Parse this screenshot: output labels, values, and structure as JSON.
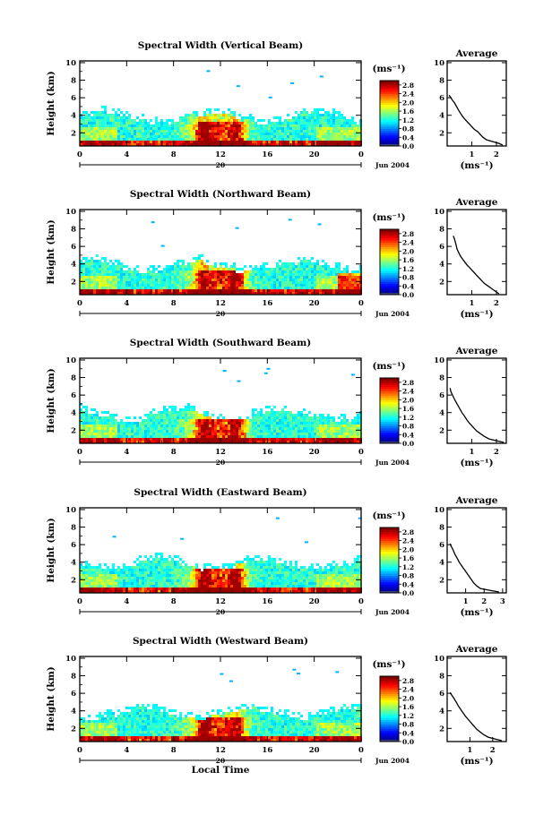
{
  "chart_data": [
    {
      "type": "heatmap",
      "title": "Spectral Width (Vertical Beam)",
      "ylabel": "Height (km)",
      "xlabel": "",
      "x_ticks": [
        "0",
        "4",
        "8",
        "12",
        "16",
        "20",
        "0"
      ],
      "y_ticks": [
        "2",
        "4",
        "6",
        "8",
        "10"
      ],
      "xlim": [
        0,
        24
      ],
      "ylim": [
        0.5,
        10.2
      ],
      "date_axis": {
        "day": "20",
        "label": "Jun 2004"
      },
      "colorbar": {
        "unit": "(ms⁻¹)",
        "ticks": [
          "0.0",
          "0.4",
          "0.8",
          "1.2",
          "1.6",
          "2.0",
          "2.4",
          "2.8"
        ],
        "range": [
          0,
          3.0
        ]
      },
      "profile": {
        "title": "Average",
        "xlabel": "(ms⁻¹)",
        "x_ticks": [
          "1",
          "2"
        ],
        "y_ticks": [
          "2",
          "4",
          "6",
          "8",
          "10"
        ],
        "xlim": [
          0,
          2.4
        ],
        "h": [
          0.6,
          0.8,
          1.0,
          1.2,
          1.5,
          1.8,
          2.1,
          2.4,
          2.7,
          3.0,
          3.3,
          3.6,
          3.9,
          4.2,
          4.5,
          4.8,
          5.1,
          5.4,
          5.7,
          6.0,
          6.3
        ],
        "w": [
          2.25,
          2.1,
          1.85,
          1.6,
          1.45,
          1.35,
          1.25,
          1.1,
          1.0,
          0.9,
          0.8,
          0.7,
          0.62,
          0.55,
          0.48,
          0.42,
          0.36,
          0.3,
          0.22,
          0.15,
          0.08
        ]
      }
    },
    {
      "type": "heatmap",
      "title": "Spectral Width (Northward Beam)",
      "ylabel": "Height (km)",
      "xlabel": "",
      "x_ticks": [
        "0",
        "4",
        "8",
        "12",
        "16",
        "20",
        "0"
      ],
      "y_ticks": [
        "2",
        "4",
        "6",
        "8",
        "10"
      ],
      "xlim": [
        0,
        24
      ],
      "ylim": [
        0.5,
        10.2
      ],
      "date_axis": {
        "day": "20",
        "label": "Jun 2004"
      },
      "colorbar": {
        "unit": "(ms⁻¹)",
        "ticks": [
          "0.0",
          "0.4",
          "0.8",
          "1.2",
          "1.6",
          "2.0",
          "2.4",
          "2.8"
        ],
        "range": [
          0,
          3.0
        ]
      },
      "profile": {
        "title": "Average",
        "xlabel": "(ms⁻¹)",
        "x_ticks": [
          "1",
          "2"
        ],
        "y_ticks": [
          "2",
          "4",
          "6",
          "8",
          "10"
        ],
        "xlim": [
          0,
          2.4
        ],
        "h": [
          0.6,
          0.9,
          1.2,
          1.5,
          1.8,
          2.1,
          2.4,
          2.7,
          3.0,
          3.3,
          3.6,
          3.9,
          4.2,
          4.5,
          4.8,
          5.1,
          5.4,
          5.7,
          6.0,
          6.3,
          6.8,
          7.2
        ],
        "w": [
          2.1,
          1.95,
          1.8,
          1.65,
          1.5,
          1.4,
          1.3,
          1.2,
          1.1,
          1.0,
          0.9,
          0.8,
          0.72,
          0.64,
          0.56,
          0.5,
          0.45,
          0.4,
          0.38,
          0.35,
          0.3,
          0.25
        ]
      }
    },
    {
      "type": "heatmap",
      "title": "Spectral Width (Southward Beam)",
      "ylabel": "Height (km)",
      "xlabel": "",
      "x_ticks": [
        "0",
        "4",
        "8",
        "12",
        "16",
        "20",
        "0"
      ],
      "y_ticks": [
        "2",
        "4",
        "6",
        "8",
        "10"
      ],
      "xlim": [
        0,
        24
      ],
      "ylim": [
        0.5,
        10.2
      ],
      "date_axis": {
        "day": "20",
        "label": "Jun 2004"
      },
      "colorbar": {
        "unit": "(ms⁻¹)",
        "ticks": [
          "0.0",
          "0.4",
          "0.8",
          "1.2",
          "1.6",
          "2.0",
          "2.4",
          "2.8"
        ],
        "range": [
          0,
          3.0
        ]
      },
      "profile": {
        "title": "Average",
        "xlabel": "(ms⁻¹)",
        "x_ticks": [
          "1",
          "2"
        ],
        "y_ticks": [
          "2",
          "4",
          "6",
          "8",
          "10"
        ],
        "xlim": [
          0,
          2.4
        ],
        "h": [
          0.6,
          0.8,
          1.0,
          1.3,
          1.6,
          1.9,
          2.2,
          2.5,
          2.8,
          3.1,
          3.4,
          3.7,
          4.0,
          4.3,
          4.6,
          4.9,
          5.2,
          5.5,
          5.8,
          6.1,
          6.4,
          6.8
        ],
        "w": [
          2.3,
          2.0,
          1.7,
          1.5,
          1.35,
          1.2,
          1.1,
          1.0,
          0.9,
          0.82,
          0.75,
          0.68,
          0.6,
          0.54,
          0.48,
          0.42,
          0.36,
          0.3,
          0.25,
          0.2,
          0.15,
          0.12
        ]
      }
    },
    {
      "type": "heatmap",
      "title": "Spectral Width (Eastward Beam)",
      "ylabel": "Height (km)",
      "xlabel": "",
      "x_ticks": [
        "0",
        "4",
        "8",
        "12",
        "16",
        "20",
        "0"
      ],
      "y_ticks": [
        "2",
        "4",
        "6",
        "8",
        "10"
      ],
      "xlim": [
        0,
        24
      ],
      "ylim": [
        0.5,
        10.2
      ],
      "date_axis": {
        "day": "20",
        "label": "Jun 2004"
      },
      "colorbar": {
        "unit": "(ms⁻¹)",
        "ticks": [
          "0.0",
          "0.4",
          "0.8",
          "1.2",
          "1.6",
          "2.0",
          "2.4",
          "2.8"
        ],
        "range": [
          0,
          3.0
        ]
      },
      "profile": {
        "title": "Average",
        "xlabel": "(ms⁻¹)",
        "x_ticks": [
          "1",
          "2",
          "3"
        ],
        "y_ticks": [
          "2",
          "4",
          "6",
          "8",
          "10"
        ],
        "xlim": [
          0,
          3.2
        ],
        "h": [
          0.6,
          0.8,
          1.0,
          1.3,
          1.6,
          1.9,
          2.2,
          2.5,
          2.8,
          3.1,
          3.4,
          3.7,
          4.0,
          4.3,
          4.6,
          4.9,
          5.2,
          5.5,
          5.8,
          6.1
        ],
        "w": [
          2.8,
          2.3,
          1.8,
          1.6,
          1.45,
          1.35,
          1.25,
          1.15,
          1.05,
          0.95,
          0.85,
          0.75,
          0.65,
          0.58,
          0.5,
          0.42,
          0.36,
          0.3,
          0.22,
          0.15
        ]
      }
    },
    {
      "type": "heatmap",
      "title": "Spectral Width (Westward Beam)",
      "ylabel": "Height (km)",
      "xlabel": "Local Time",
      "x_ticks": [
        "0",
        "4",
        "8",
        "12",
        "16",
        "20",
        "0"
      ],
      "y_ticks": [
        "2",
        "4",
        "6",
        "8",
        "10"
      ],
      "xlim": [
        0,
        24
      ],
      "ylim": [
        0.5,
        10.2
      ],
      "date_axis": {
        "day": "20",
        "label": "Jun 2004"
      },
      "colorbar": {
        "unit": "(ms⁻¹)",
        "ticks": [
          "0.0",
          "0.4",
          "0.8",
          "1.2",
          "1.6",
          "2.0",
          "2.4",
          "2.8"
        ],
        "range": [
          0,
          3.0
        ]
      },
      "profile": {
        "title": "Average",
        "xlabel": "(ms⁻¹)",
        "x_ticks": [
          "1",
          "2"
        ],
        "y_ticks": [
          "2",
          "4",
          "6",
          "8",
          "10"
        ],
        "xlim": [
          0,
          2.6
        ],
        "h": [
          0.6,
          0.8,
          1.0,
          1.3,
          1.6,
          1.9,
          2.2,
          2.5,
          2.8,
          3.1,
          3.4,
          3.7,
          4.0,
          4.3,
          4.6,
          4.9,
          5.2,
          5.5,
          5.8,
          6.1
        ],
        "w": [
          2.4,
          2.1,
          1.8,
          1.6,
          1.45,
          1.3,
          1.2,
          1.1,
          1.0,
          0.9,
          0.8,
          0.72,
          0.64,
          0.56,
          0.48,
          0.42,
          0.35,
          0.28,
          0.2,
          0.12
        ]
      }
    }
  ]
}
